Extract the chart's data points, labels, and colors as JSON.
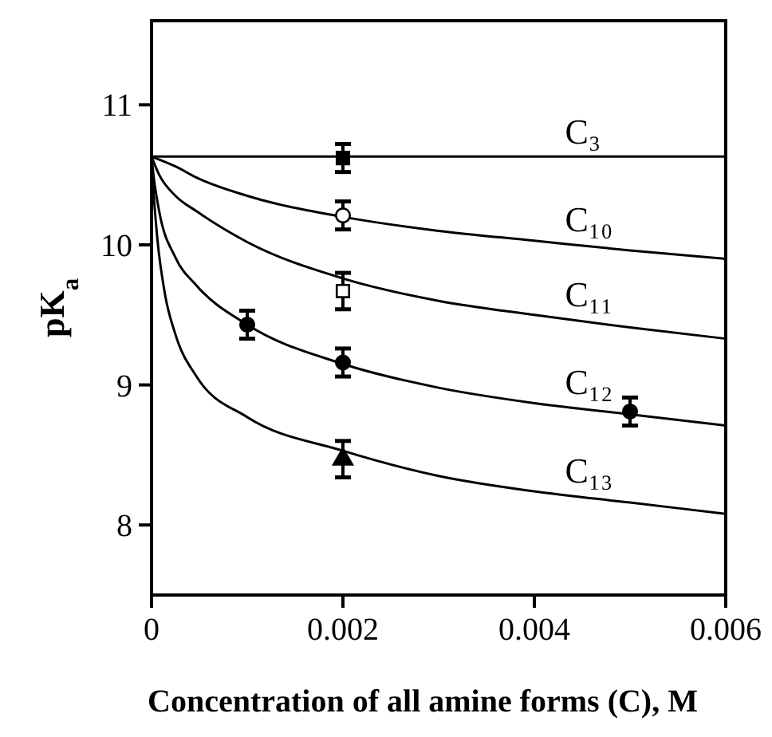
{
  "chart_data": {
    "type": "line",
    "xlabel": "Concentration of all amine forms (C), M",
    "ylabel": "pK$_{a}$",
    "xlim": [
      0,
      0.006
    ],
    "ylim": [
      7.5,
      11.6
    ],
    "xticks": [
      0,
      0.002,
      0.004,
      0.006
    ],
    "yticks": [
      8,
      9,
      10,
      11
    ],
    "grid": false,
    "line_style": "solid",
    "series": [
      {
        "name": "C₃",
        "color": "#000000",
        "marker": "none",
        "x": [
          0,
          0.006
        ],
        "values": [
          10.63,
          10.63
        ]
      },
      {
        "name": "C₁₀",
        "color": "#000000",
        "marker": "none",
        "x": [
          0,
          0.00025,
          0.00047,
          0.001,
          0.002,
          0.003,
          0.004,
          0.005,
          0.006
        ],
        "values": [
          10.63,
          10.56,
          10.48,
          10.35,
          10.2,
          10.1,
          10.03,
          9.96,
          9.9
        ]
      },
      {
        "name": "C₁₁",
        "color": "#000000",
        "marker": "none",
        "x": [
          0,
          8e-05,
          0.00025,
          0.00047,
          0.001,
          0.002,
          0.003,
          0.004,
          0.005,
          0.006
        ],
        "values": [
          10.63,
          10.5,
          10.35,
          10.24,
          10.02,
          9.76,
          9.6,
          9.5,
          9.41,
          9.33
        ]
      },
      {
        "name": "C₁₂",
        "color": "#000000",
        "marker": "none",
        "x": [
          0,
          2e-05,
          8e-05,
          0.00025,
          0.00047,
          0.001,
          0.002,
          0.003,
          0.004,
          0.005,
          0.006
        ],
        "values": [
          10.63,
          10.5,
          10.24,
          9.91,
          9.71,
          9.43,
          9.15,
          8.98,
          8.87,
          8.79,
          8.71
        ]
      },
      {
        "name": "C₁₃",
        "color": "#000000",
        "marker": "none",
        "x": [
          0,
          1.7e-05,
          6e-05,
          0.00014,
          0.00025,
          0.00047,
          0.001,
          0.002,
          0.003,
          0.004,
          0.005,
          0.006
        ],
        "values": [
          10.63,
          10.42,
          10.05,
          9.65,
          9.36,
          9.06,
          8.77,
          8.53,
          8.35,
          8.24,
          8.16,
          8.08
        ]
      },
      {
        "type": "scatter",
        "color": "#000000",
        "marker": "square",
        "x": [
          0.002
        ],
        "values": [
          10.62
        ],
        "errors": [
          0.1
        ]
      },
      {
        "type": "scatter",
        "color": "#ffffff",
        "marker": "circle",
        "x": [
          0.002
        ],
        "values": [
          10.21
        ],
        "errors": [
          0.1
        ]
      },
      {
        "type": "scatter",
        "color": "#ffffff",
        "marker": "square",
        "x": [
          0.002
        ],
        "values": [
          9.67
        ],
        "errors": [
          0.13
        ]
      },
      {
        "type": "scatter",
        "color": "#000000",
        "marker": "circle",
        "x": [
          0.001,
          0.002,
          0.005
        ],
        "values": [
          9.43,
          9.16,
          8.81
        ],
        "errors": [
          0.1,
          0.1,
          0.1
        ]
      },
      {
        "type": "scatter",
        "color": "#000000",
        "marker": "triangle",
        "x": [
          0.002
        ],
        "values": [
          8.47
        ],
        "errors": [
          0.13
        ]
      }
    ]
  }
}
